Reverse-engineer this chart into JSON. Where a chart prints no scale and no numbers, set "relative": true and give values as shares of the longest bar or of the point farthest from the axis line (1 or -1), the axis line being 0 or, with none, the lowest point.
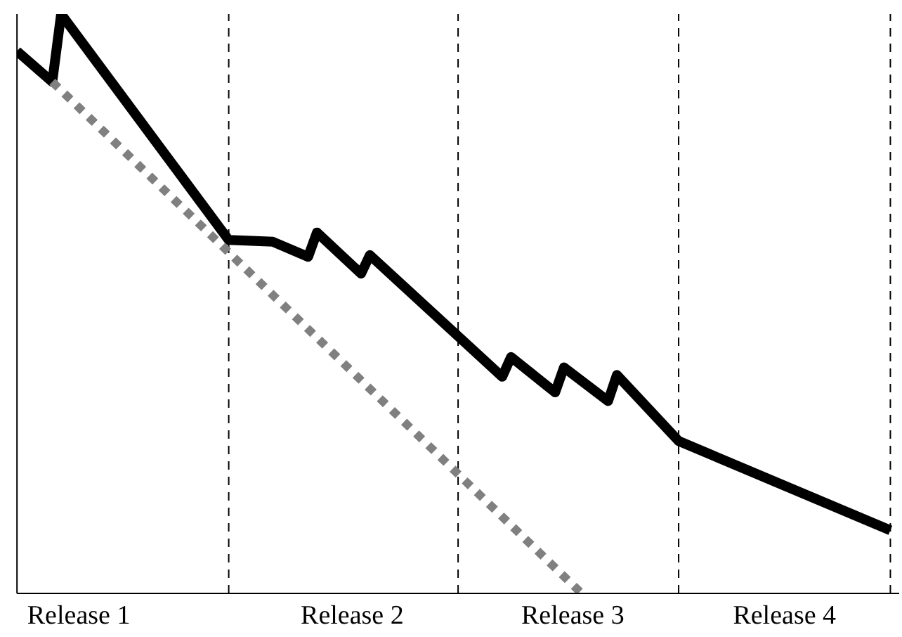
{
  "chart_data": {
    "type": "line",
    "relative": true,
    "legend": false,
    "grid": false,
    "categories": [
      null,
      null,
      null,
      null,
      null,
      null,
      null,
      "Release 1",
      null,
      null,
      null,
      null,
      null,
      null,
      null,
      null,
      null,
      null,
      null,
      null,
      null,
      null,
      null,
      null,
      null,
      null,
      null,
      null,
      null,
      null,
      null,
      null,
      null,
      null,
      null,
      null,
      null,
      null,
      "Release 2",
      null,
      null,
      null,
      null,
      null,
      null,
      null,
      null,
      null,
      null,
      null,
      null,
      null,
      null,
      null,
      null,
      null,
      null,
      null,
      null,
      null,
      null,
      null,
      null,
      "Release 3",
      null,
      null,
      null,
      null,
      null,
      null,
      null,
      null,
      null,
      null,
      null,
      null,
      null,
      null,
      null,
      null,
      null,
      null,
      null,
      null,
      null,
      null,
      null,
      "Release 4",
      null,
      null,
      null,
      null,
      null,
      null,
      null,
      null,
      null,
      null,
      null,
      null,
      null
    ],
    "series": [
      {
        "color": "#000000",
        "line_style": "solid",
        "values": [
          0.936,
          null,
          null,
          null,
          0.883,
          1,
          null,
          null,
          null,
          null,
          null,
          null,
          null,
          null,
          null,
          null,
          null,
          null,
          null,
          null,
          null,
          null,
          null,
          null,
          0.61,
          null,
          null,
          null,
          null,
          0.607,
          null,
          null,
          null,
          0.581,
          0.623,
          null,
          null,
          null,
          null,
          0.552,
          0.584,
          null,
          null,
          null,
          null,
          null,
          null,
          null,
          null,
          null,
          null,
          null,
          null,
          null,
          null,
          0.374,
          0.408,
          null,
          null,
          null,
          null,
          0.347,
          0.39,
          null,
          null,
          null,
          null,
          0.332,
          0.377,
          null,
          null,
          null,
          null,
          null,
          null,
          0.263,
          null,
          null,
          null,
          null,
          null,
          null,
          null,
          null,
          null,
          null,
          null,
          null,
          null,
          null,
          null,
          null,
          null,
          null,
          null,
          null,
          null,
          null,
          null,
          0.109,
          null
        ]
      },
      {
        "color": "#808080",
        "line_style": "dotted",
        "values": [
          null,
          null,
          null,
          null,
          0.883,
          null,
          null,
          null,
          null,
          null,
          null,
          null,
          null,
          null,
          null,
          null,
          null,
          null,
          null,
          null,
          null,
          null,
          null,
          null,
          null,
          null,
          null,
          null,
          null,
          null,
          null,
          null,
          null,
          null,
          null,
          null,
          null,
          null,
          null,
          null,
          null,
          null,
          null,
          null,
          null,
          null,
          null,
          null,
          null,
          null,
          null,
          null,
          null,
          null,
          null,
          null,
          null,
          null,
          null,
          null,
          null,
          null,
          null,
          null,
          0,
          null,
          null,
          null,
          null,
          null,
          null,
          null,
          null,
          null,
          null,
          null,
          null,
          null,
          null,
          null,
          null,
          null,
          null,
          null,
          null,
          null,
          null,
          null,
          null,
          null,
          null,
          null,
          null,
          null,
          null,
          null,
          null,
          null,
          null,
          null,
          null
        ]
      }
    ]
  }
}
